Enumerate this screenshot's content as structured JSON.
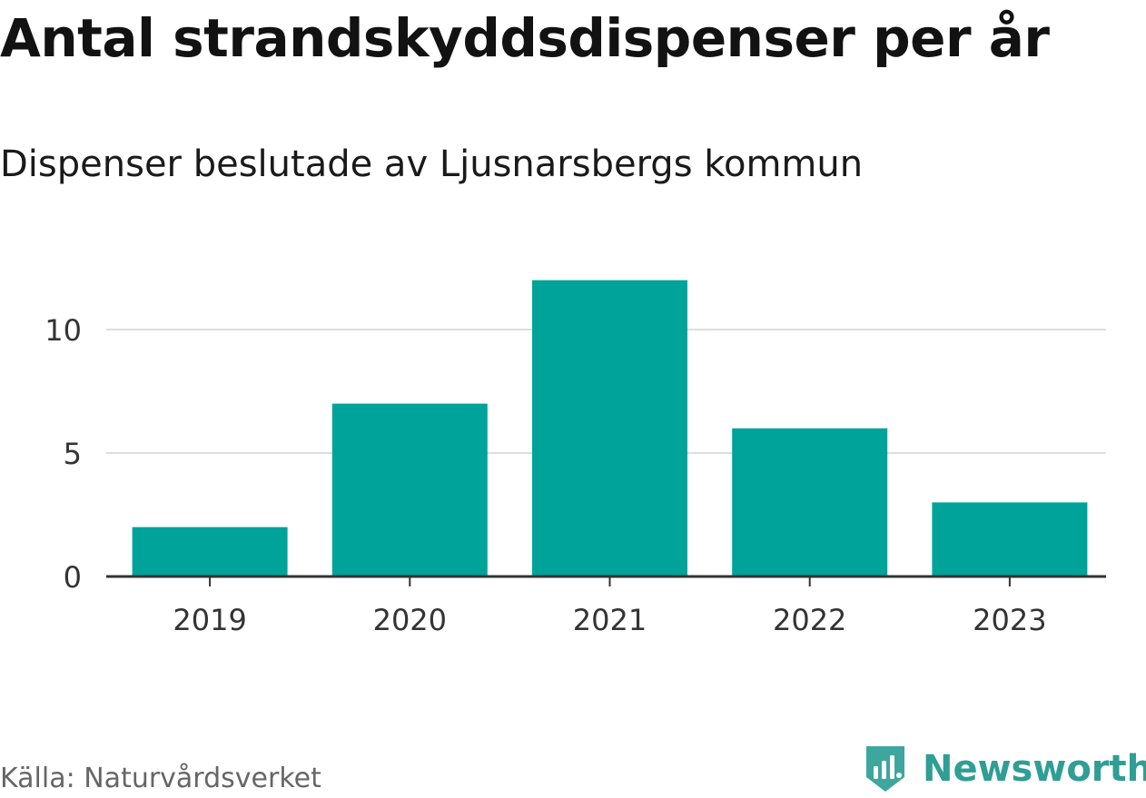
{
  "title": "Antal strandskyddsdispenser per år",
  "subtitle": "Dispenser beslutade av Ljusnarsbergs kommun",
  "source": "Källa: Naturvårdsverket",
  "brand": "Newsworthy",
  "colors": {
    "bar": "#00a39a",
    "brand": "#2f9e94",
    "grid": "#dddddd",
    "axis": "#333333"
  },
  "chart_data": {
    "type": "bar",
    "title": "Antal strandskyddsdispenser per år",
    "subtitle": "Dispenser beslutade av Ljusnarsbergs kommun",
    "xlabel": "",
    "ylabel": "",
    "categories": [
      "2019",
      "2020",
      "2021",
      "2022",
      "2023"
    ],
    "values": [
      2,
      7,
      12,
      6,
      3
    ],
    "ylim": [
      0,
      12
    ],
    "yticks": [
      0,
      5,
      10
    ],
    "grid": true
  }
}
